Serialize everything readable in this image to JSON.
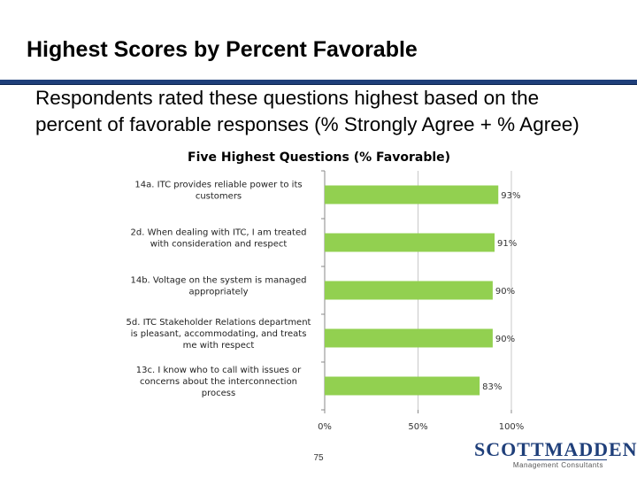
{
  "slide": {
    "title": "Highest Scores by Percent Favorable",
    "intro": "Respondents rated these questions highest based on the percent of favorable responses (% Strongly Agree + % Agree)",
    "page_number": "75"
  },
  "logo": {
    "main": "SCOTTMADDEN",
    "sub": "Management Consultants",
    "color": "#1f3f7a"
  },
  "colors": {
    "bar": "#92d050",
    "rule": "#1f3f7a"
  },
  "chart_data": {
    "type": "bar",
    "orientation": "horizontal",
    "title": "Five Highest Questions (% Favorable)",
    "categories": [
      [
        "14a. ITC provides reliable power to its",
        "customers"
      ],
      [
        "2d. When dealing with ITC, I am treated",
        "with consideration and respect"
      ],
      [
        "14b. Voltage on the system is managed",
        "appropriately"
      ],
      [
        "5d. ITC Stakeholder Relations department",
        "is pleasant, accommodating, and treats",
        "me with respect"
      ],
      [
        "13c. I know who to call with issues or",
        "concerns about the interconnection",
        "process"
      ]
    ],
    "values": [
      93,
      91,
      90,
      90,
      83
    ],
    "value_labels": [
      "93%",
      "91%",
      "90%",
      "90%",
      "83%"
    ],
    "xlim": [
      0,
      100
    ],
    "x_ticks": [
      "0%",
      "50%",
      "100%"
    ],
    "grid": true,
    "legend": "none"
  }
}
